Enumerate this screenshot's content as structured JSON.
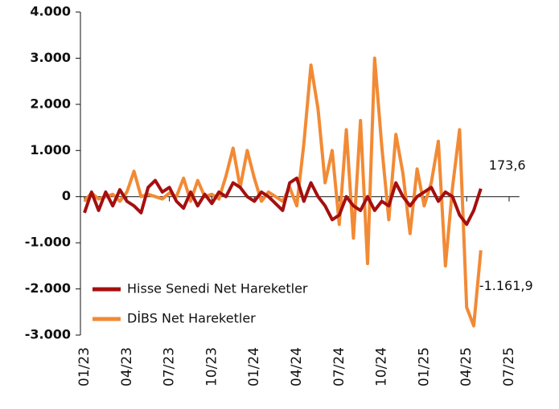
{
  "chart_data": {
    "type": "line",
    "categories": [
      "01/23",
      null,
      null,
      null,
      null,
      null,
      "04/23",
      null,
      null,
      null,
      null,
      null,
      "07/23",
      null,
      null,
      null,
      null,
      null,
      "10/23",
      null,
      null,
      null,
      null,
      null,
      "01/24",
      null,
      null,
      null,
      null,
      null,
      "04/24",
      null,
      null,
      null,
      null,
      null,
      "07/24",
      null,
      null,
      null,
      null,
      null,
      "10/24",
      null,
      null,
      null,
      null,
      null,
      "01/25",
      null,
      null,
      null,
      null,
      null,
      "04/25",
      null,
      null,
      null,
      null,
      null,
      "07/25",
      null
    ],
    "series": [
      {
        "name": "Hisse Senedi Net Hareketler",
        "color": "#a50f0f",
        "end_label": "173,6",
        "values": [
          -350,
          100,
          -300,
          100,
          -200,
          150,
          -100,
          -200,
          -350,
          200,
          350,
          100,
          200,
          -100,
          -250,
          100,
          -200,
          50,
          -150,
          100,
          0,
          300,
          200,
          0,
          -100,
          100,
          0,
          -150,
          -300,
          300,
          400,
          -100,
          300,
          0,
          -200,
          -500,
          -400,
          0,
          -200,
          -300,
          0,
          -300,
          -100,
          -200,
          300,
          0,
          -200,
          0,
          100,
          200,
          -100,
          100,
          0,
          -400,
          -600,
          -300,
          173.6,
          null,
          null,
          null,
          null,
          null
        ]
      },
      {
        "name": "DİBS Net Hareketler",
        "color": "#f28a35",
        "end_label": "-1.161,9",
        "values": [
          -100,
          80,
          -50,
          0,
          50,
          -100,
          100,
          550,
          0,
          50,
          0,
          -50,
          80,
          0,
          400,
          -100,
          350,
          0,
          50,
          -50,
          450,
          1050,
          200,
          1000,
          400,
          -100,
          100,
          0,
          -100,
          200,
          -200,
          1150,
          2850,
          1900,
          300,
          1000,
          -600,
          1450,
          -900,
          1650,
          -1450,
          3000,
          1100,
          -500,
          1350,
          500,
          -800,
          600,
          -200,
          300,
          1200,
          -1500,
          200,
          1450,
          -2400,
          -2800,
          -1161.9,
          null,
          null,
          null,
          null,
          null
        ]
      }
    ],
    "ylim": [
      -3000,
      4000
    ],
    "yticks": [
      {
        "value": -3000,
        "label": "-3.000"
      },
      {
        "value": -2000,
        "label": "-2.000"
      },
      {
        "value": -1000,
        "label": "-1.000"
      },
      0,
      {
        "value": 1000,
        "label": "1.000"
      },
      {
        "value": 2000,
        "label": "2.000"
      },
      {
        "value": 3000,
        "label": "3.000"
      },
      {
        "value": 4000,
        "label": "4.000"
      }
    ],
    "legend": "lower left"
  }
}
